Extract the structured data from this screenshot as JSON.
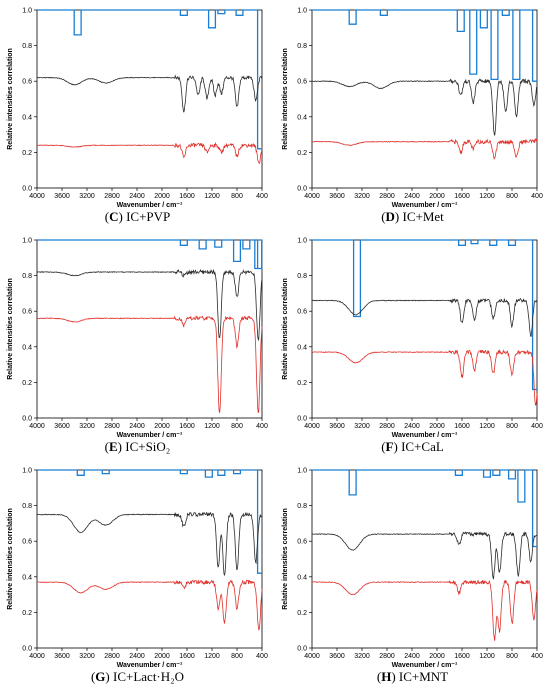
{
  "figure": {
    "colors": {
      "blue": "#1a7fd4",
      "black": "#2a2a2a",
      "red": "#e0302a",
      "axis": "#000000"
    }
  },
  "chart_data": [
    {
      "panel": "C",
      "type": "line",
      "caption_letter": "(C)",
      "caption_text": " IC+PVP",
      "xlabel": "Wavenumber / cm⁻¹",
      "ylabel": "Relative intensities correlation",
      "xlim": [
        4000,
        400
      ],
      "ylim": [
        0,
        1.0
      ],
      "x_reversed": true,
      "xticks": [
        4000,
        3600,
        3200,
        2800,
        2400,
        2000,
        1600,
        1200,
        800,
        400
      ],
      "yticks": [
        0.0,
        0.2,
        0.4,
        0.6,
        0.8,
        1.0
      ],
      "series": [
        {
          "color": "blue",
          "baseline": 1.0,
          "end": 0.22,
          "drops": [
            [
              3350,
              0.86
            ],
            [
              1650,
              0.97
            ],
            [
              1200,
              0.9
            ],
            [
              1050,
              0.98
            ],
            [
              760,
              0.97
            ]
          ]
        },
        {
          "color": "black",
          "baseline": 0.62,
          "features": [
            [
              3400,
              0.58
            ],
            [
              2900,
              0.59
            ],
            [
              1650,
              0.43
            ],
            [
              1420,
              0.52
            ],
            [
              1280,
              0.5
            ],
            [
              1150,
              0.52
            ],
            [
              1050,
              0.53
            ],
            [
              800,
              0.45
            ],
            [
              500,
              0.49
            ]
          ]
        },
        {
          "color": "red",
          "baseline": 0.24,
          "features": [
            [
              3400,
              0.23
            ],
            [
              1650,
              0.17
            ],
            [
              1280,
              0.2
            ],
            [
              1050,
              0.2
            ],
            [
              800,
              0.18
            ],
            [
              450,
              0.14
            ]
          ]
        }
      ]
    },
    {
      "panel": "D",
      "type": "line",
      "caption_letter": "(D)",
      "caption_text": " IC+Met",
      "xlabel": "Wavenumber / cm⁻¹",
      "ylabel": "Relative intensities correlation",
      "xlim": [
        4000,
        400
      ],
      "ylim": [
        0,
        1.0
      ],
      "x_reversed": true,
      "xticks": [
        4000,
        3600,
        3200,
        2800,
        2400,
        2000,
        1600,
        1200,
        800,
        400
      ],
      "yticks": [
        0.0,
        0.2,
        0.4,
        0.6,
        0.8,
        1.0
      ],
      "series": [
        {
          "color": "blue",
          "baseline": 1.0,
          "end": 0.6,
          "drops": [
            [
              3350,
              0.92
            ],
            [
              2850,
              0.97
            ],
            [
              1620,
              0.88
            ],
            [
              1420,
              0.64
            ],
            [
              1250,
              0.9
            ],
            [
              1080,
              0.61
            ],
            [
              900,
              0.97
            ],
            [
              730,
              0.61
            ]
          ]
        },
        {
          "color": "black",
          "baseline": 0.6,
          "features": [
            [
              3400,
              0.57
            ],
            [
              2900,
              0.56
            ],
            [
              1620,
              0.52
            ],
            [
              1420,
              0.48
            ],
            [
              1080,
              0.3
            ],
            [
              900,
              0.43
            ],
            [
              730,
              0.4
            ],
            [
              450,
              0.46
            ]
          ]
        },
        {
          "color": "red",
          "baseline": 0.26,
          "features": [
            [
              3400,
              0.24
            ],
            [
              1620,
              0.2
            ],
            [
              1420,
              0.22
            ],
            [
              1080,
              0.17
            ],
            [
              730,
              0.17
            ],
            [
              400,
              0.27
            ]
          ]
        }
      ]
    },
    {
      "panel": "E",
      "type": "line",
      "caption_letter": "(E)",
      "caption_text": " IC+SiO₂",
      "xlabel": "Wavenumber / cm⁻¹",
      "ylabel": "Relative intensities correlation",
      "xlim": [
        4000,
        400
      ],
      "ylim": [
        0,
        1.0
      ],
      "x_reversed": true,
      "xticks": [
        4000,
        3600,
        3200,
        2800,
        2400,
        2000,
        1600,
        1200,
        800,
        400
      ],
      "yticks": [
        0.0,
        0.2,
        0.4,
        0.6,
        0.8,
        1.0
      ],
      "series": [
        {
          "color": "blue",
          "baseline": 1.0,
          "end": 0.84,
          "drops": [
            [
              1650,
              0.97
            ],
            [
              1350,
              0.95
            ],
            [
              1100,
              0.96
            ],
            [
              800,
              0.88
            ],
            [
              650,
              0.95
            ],
            [
              460,
              0.84
            ]
          ]
        },
        {
          "color": "black",
          "baseline": 0.82,
          "features": [
            [
              3400,
              0.8
            ],
            [
              1650,
              0.8
            ],
            [
              1080,
              0.44
            ],
            [
              800,
              0.68
            ],
            [
              460,
              0.43
            ]
          ]
        },
        {
          "color": "red",
          "baseline": 0.56,
          "features": [
            [
              3400,
              0.54
            ],
            [
              1650,
              0.52
            ],
            [
              1080,
              0.02
            ],
            [
              800,
              0.4
            ],
            [
              460,
              0.02
            ]
          ]
        }
      ]
    },
    {
      "panel": "F",
      "type": "line",
      "caption_letter": "(F)",
      "caption_text": " IC+CaL",
      "xlabel": "Wavenumber / cm⁻¹",
      "ylabel": "Relative intensities correlation",
      "xlim": [
        4000,
        400
      ],
      "ylim": [
        0,
        1.0
      ],
      "x_reversed": true,
      "xticks": [
        4000,
        3600,
        3200,
        2800,
        2400,
        2000,
        1600,
        1200,
        800,
        400
      ],
      "yticks": [
        0.0,
        0.2,
        0.4,
        0.6,
        0.8,
        1.0
      ],
      "series": [
        {
          "color": "blue",
          "baseline": 1.0,
          "end": 0.16,
          "drops": [
            [
              3280,
              0.57
            ],
            [
              1600,
              0.97
            ],
            [
              1400,
              0.98
            ],
            [
              1100,
              0.97
            ],
            [
              800,
              0.97
            ]
          ]
        },
        {
          "color": "black",
          "baseline": 0.66,
          "features": [
            [
              3300,
              0.58
            ],
            [
              1600,
              0.53
            ],
            [
              1400,
              0.55
            ],
            [
              1100,
              0.56
            ],
            [
              800,
              0.52
            ],
            [
              500,
              0.46
            ]
          ]
        },
        {
          "color": "red",
          "baseline": 0.37,
          "features": [
            [
              3300,
              0.31
            ],
            [
              1600,
              0.23
            ],
            [
              1400,
              0.27
            ],
            [
              1100,
              0.25
            ],
            [
              800,
              0.24
            ],
            [
              420,
              0.07
            ]
          ]
        }
      ]
    },
    {
      "panel": "G",
      "type": "line",
      "caption_letter": "(G)",
      "caption_text": " IC+Lact·H₂O",
      "xlabel": "Wavenumber / cm⁻¹",
      "ylabel": "Relative intensities correlation",
      "xlim": [
        4000,
        400
      ],
      "ylim": [
        0,
        1.0
      ],
      "x_reversed": true,
      "xticks": [
        4000,
        3600,
        3200,
        2800,
        2400,
        2000,
        1600,
        1200,
        800,
        400
      ],
      "yticks": [
        0.0,
        0.2,
        0.4,
        0.6,
        0.8,
        1.0
      ],
      "series": [
        {
          "color": "blue",
          "baseline": 1.0,
          "end": 0.42,
          "drops": [
            [
              3300,
              0.97
            ],
            [
              2900,
              0.98
            ],
            [
              1650,
              0.98
            ],
            [
              1250,
              0.96
            ],
            [
              1050,
              0.97
            ],
            [
              800,
              0.98
            ]
          ]
        },
        {
          "color": "black",
          "baseline": 0.75,
          "features": [
            [
              3300,
              0.65
            ],
            [
              2900,
              0.69
            ],
            [
              1650,
              0.68
            ],
            [
              1100,
              0.45
            ],
            [
              1000,
              0.4
            ],
            [
              800,
              0.44
            ],
            [
              500,
              0.48
            ]
          ]
        },
        {
          "color": "red",
          "baseline": 0.37,
          "features": [
            [
              3300,
              0.31
            ],
            [
              2900,
              0.33
            ],
            [
              1650,
              0.34
            ],
            [
              1100,
              0.22
            ],
            [
              1000,
              0.14
            ],
            [
              800,
              0.22
            ],
            [
              450,
              0.1
            ]
          ]
        }
      ]
    },
    {
      "panel": "H",
      "type": "line",
      "caption_letter": "(H)",
      "caption_text": " IC+MNT",
      "xlabel": "Wavenumber / cm⁻¹",
      "ylabel": "Relative intensities correlation",
      "xlim": [
        4000,
        400
      ],
      "ylim": [
        0,
        1.0
      ],
      "x_reversed": true,
      "xticks": [
        4000,
        3600,
        3200,
        2800,
        2400,
        2000,
        1600,
        1200,
        800,
        400
      ],
      "yticks": [
        0.0,
        0.2,
        0.4,
        0.6,
        0.8,
        1.0
      ],
      "series": [
        {
          "color": "blue",
          "baseline": 1.0,
          "end": 0.57,
          "drops": [
            [
              3350,
              0.86
            ],
            [
              1650,
              0.97
            ],
            [
              1200,
              0.96
            ],
            [
              1050,
              0.97
            ],
            [
              800,
              0.95
            ],
            [
              650,
              0.82
            ]
          ]
        },
        {
          "color": "black",
          "baseline": 0.64,
          "features": [
            [
              3350,
              0.55
            ],
            [
              1650,
              0.58
            ],
            [
              1100,
              0.39
            ],
            [
              1000,
              0.42
            ],
            [
              700,
              0.4
            ],
            [
              500,
              0.49
            ]
          ]
        },
        {
          "color": "red",
          "baseline": 0.37,
          "features": [
            [
              3350,
              0.3
            ],
            [
              1650,
              0.31
            ],
            [
              1080,
              0.05
            ],
            [
              1000,
              0.1
            ],
            [
              800,
              0.14
            ],
            [
              450,
              0.16
            ]
          ]
        }
      ]
    }
  ]
}
